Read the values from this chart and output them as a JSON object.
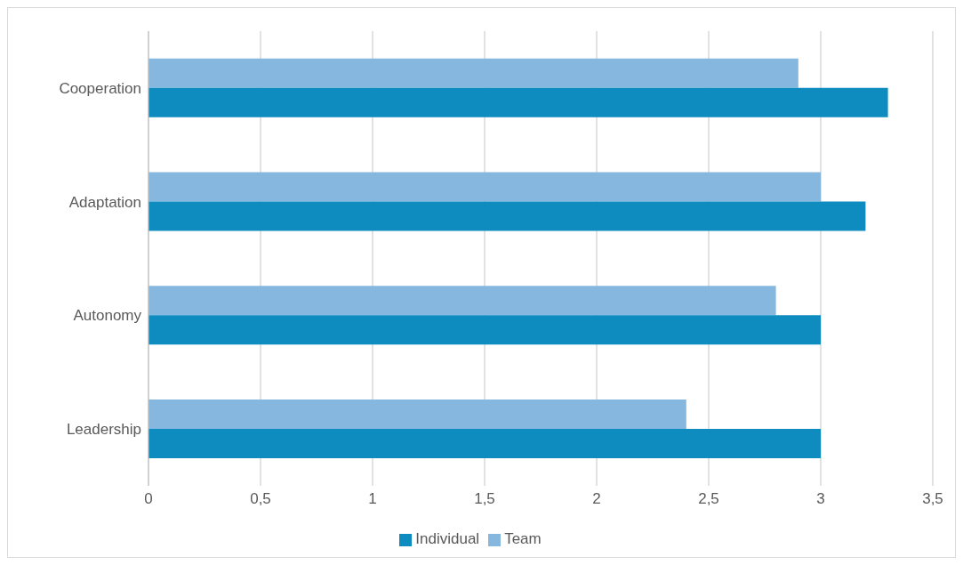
{
  "chart_data": {
    "type": "bar",
    "orientation": "horizontal",
    "categories": [
      "Cooperation",
      "Adaptation",
      "Autonomy",
      "Leadership"
    ],
    "series": [
      {
        "name": "Team",
        "color": "#86b8df",
        "values": [
          2.9,
          3.0,
          2.8,
          2.4
        ]
      },
      {
        "name": "Individual",
        "color": "#0e8bbf",
        "values": [
          3.3,
          3.2,
          3.0,
          3.0
        ]
      }
    ],
    "xlim": [
      0,
      3.5
    ],
    "xticks": [
      0,
      {
        "value": 0.5,
        "label": "0,5"
      },
      1,
      {
        "value": 1.5,
        "label": "1,5"
      },
      2,
      {
        "value": 2.5,
        "label": "2,5"
      },
      3,
      {
        "value": 3.5,
        "label": "3,5"
      }
    ],
    "grid": "x",
    "legend": "bottom"
  }
}
